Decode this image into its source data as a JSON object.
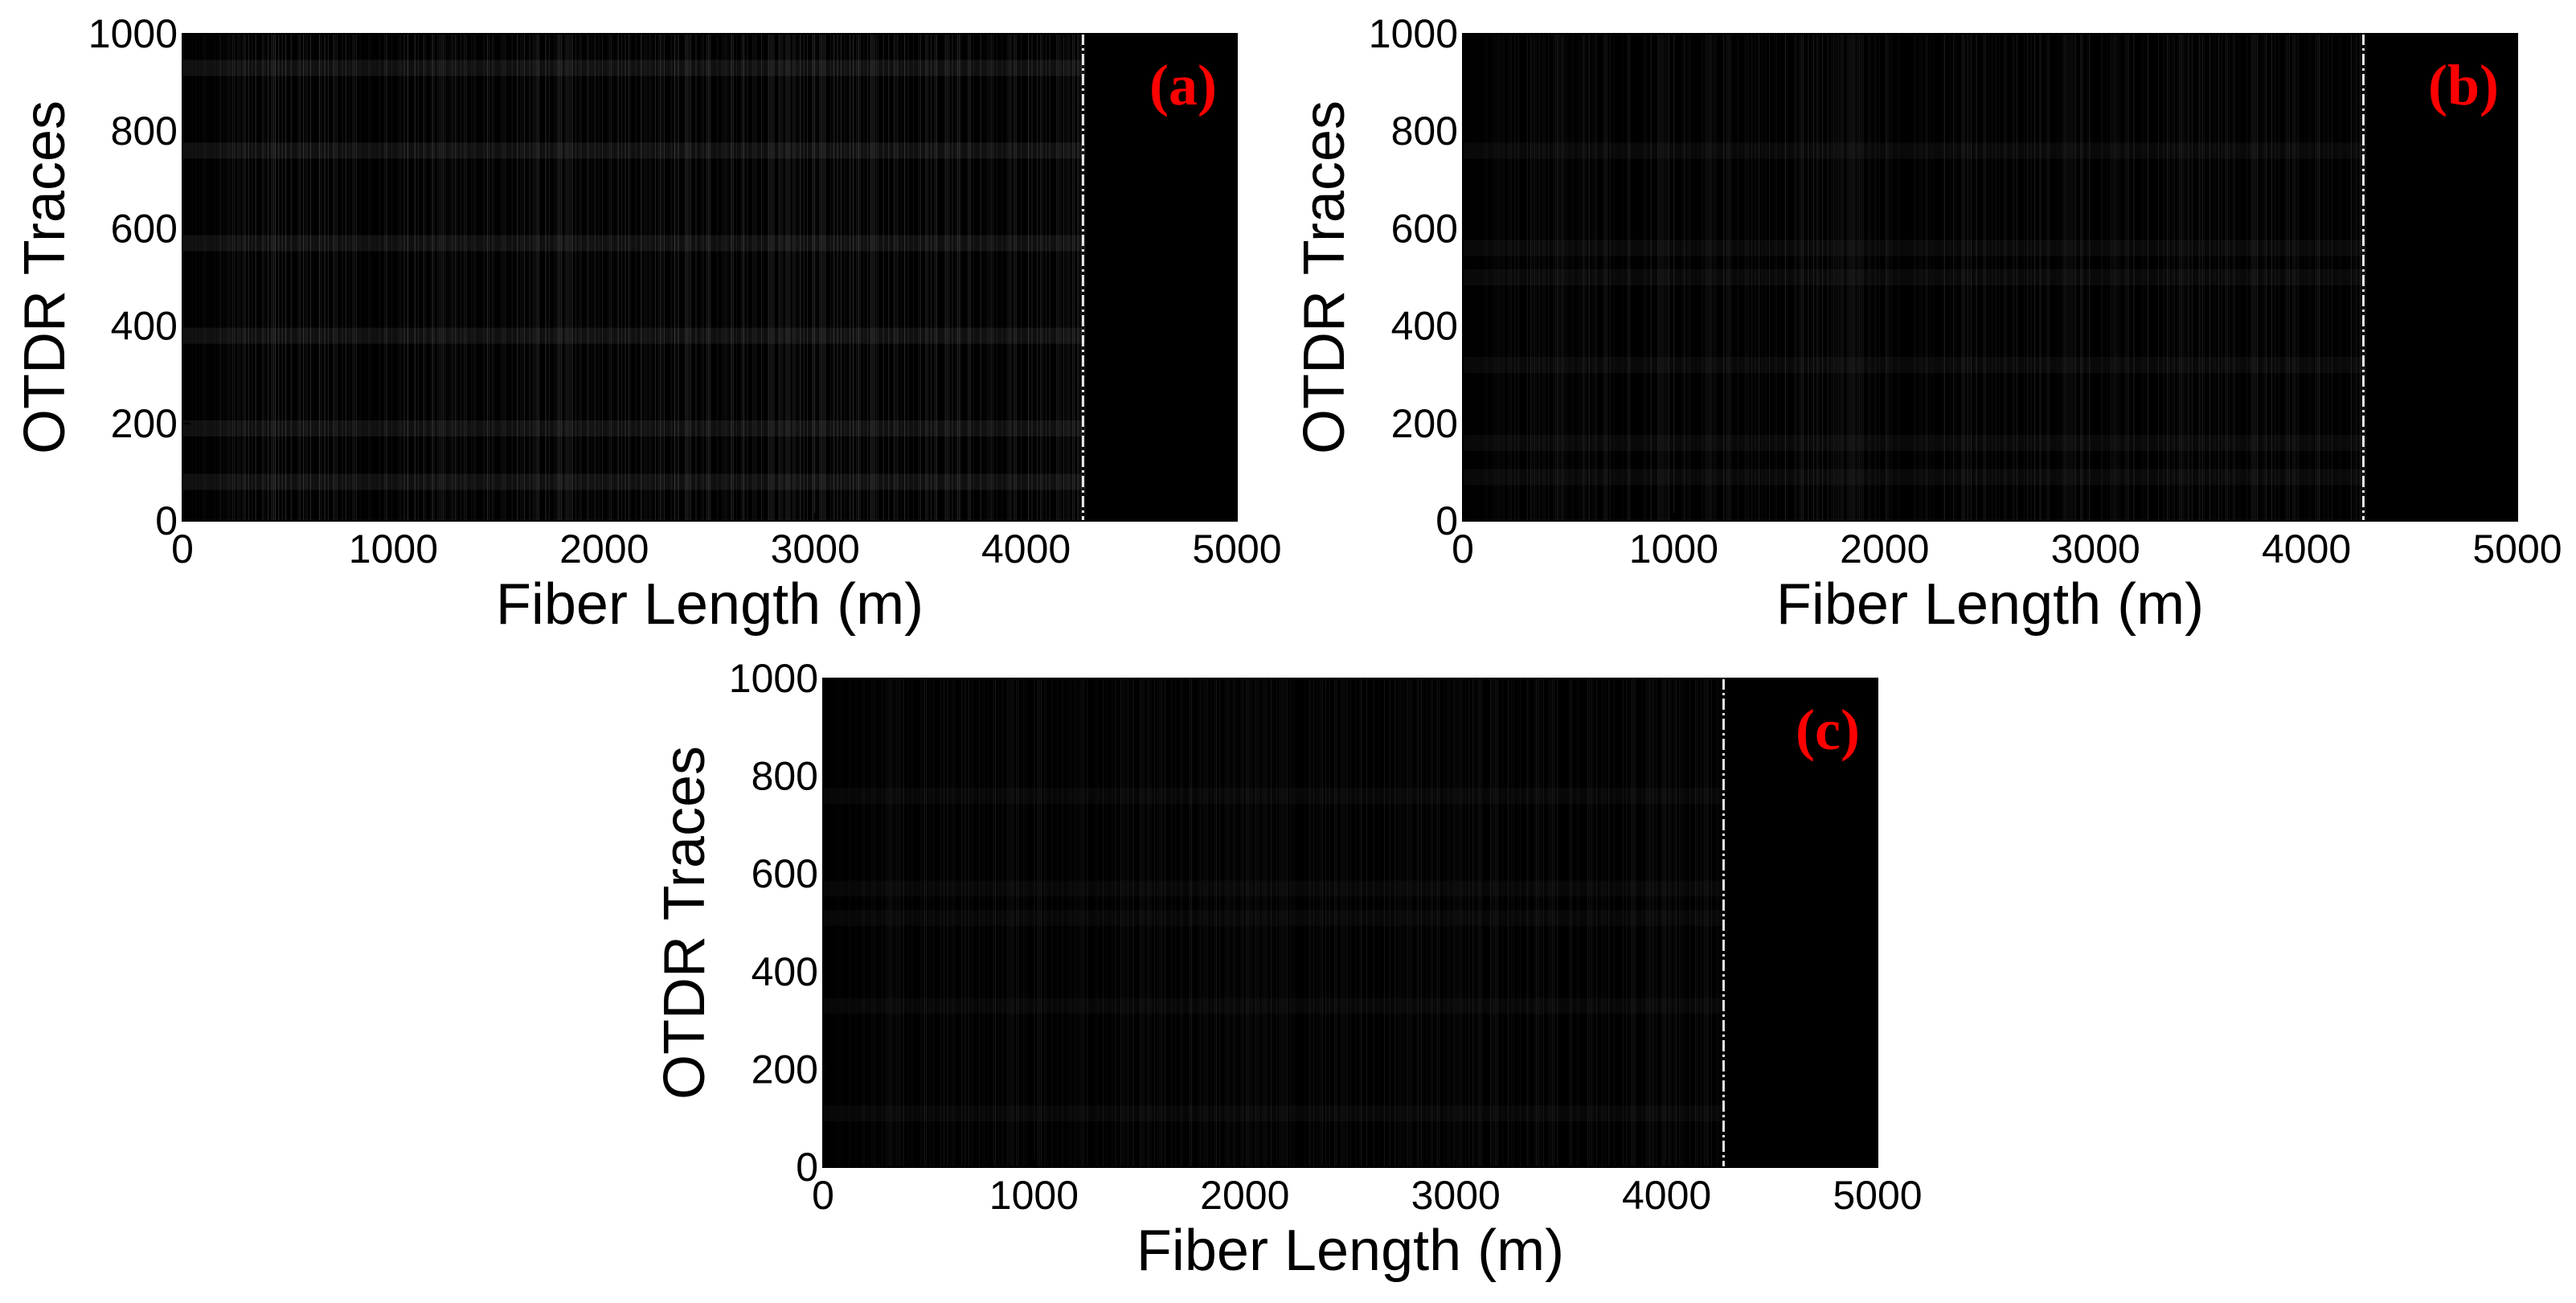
{
  "colors": {
    "background": "#000000",
    "noise_stripe": "#c8c8c8",
    "event_line": "#ffffff",
    "panel_label": "#ff0000",
    "axes": "#000000"
  },
  "chart_data": [
    {
      "type": "heatmap",
      "panel_label": "(a)",
      "xlabel": "Fiber Length (m)",
      "ylabel": "OTDR Traces",
      "xlim": [
        0,
        5000
      ],
      "ylim": [
        0,
        1000
      ],
      "xticks": [
        0,
        1000,
        2000,
        3000,
        4000,
        5000
      ],
      "yticks": [
        0,
        200,
        400,
        600,
        800,
        1000
      ],
      "fiber_end_m": 4280,
      "event_position_m": 4270,
      "noise_level": 0.22,
      "bright_trace_bands": [
        80,
        190,
        380,
        570,
        760,
        930
      ]
    },
    {
      "type": "heatmap",
      "panel_label": "(b)",
      "xlabel": "Fiber Length (m)",
      "ylabel": "OTDR Traces",
      "xlim": [
        0,
        5000
      ],
      "ylim": [
        0,
        1000
      ],
      "xticks": [
        0,
        1000,
        2000,
        3000,
        4000,
        5000
      ],
      "yticks": [
        0,
        200,
        400,
        600,
        800,
        1000
      ],
      "fiber_end_m": 4280,
      "event_position_m": 4270,
      "noise_level": 0.14,
      "bright_trace_bands": [
        90,
        160,
        320,
        500,
        560,
        760
      ]
    },
    {
      "type": "heatmap",
      "panel_label": "(c)",
      "xlabel": "Fiber Length (m)",
      "ylabel": "OTDR Traces",
      "xlim": [
        0,
        5000
      ],
      "ylim": [
        0,
        1000
      ],
      "xticks": [
        0,
        1000,
        2000,
        3000,
        4000,
        5000
      ],
      "yticks": [
        0,
        200,
        400,
        600,
        800,
        1000
      ],
      "fiber_end_m": 4280,
      "event_position_m": 4270,
      "noise_level": 0.1,
      "bright_trace_bands": [
        110,
        330,
        510,
        570,
        760
      ]
    }
  ]
}
